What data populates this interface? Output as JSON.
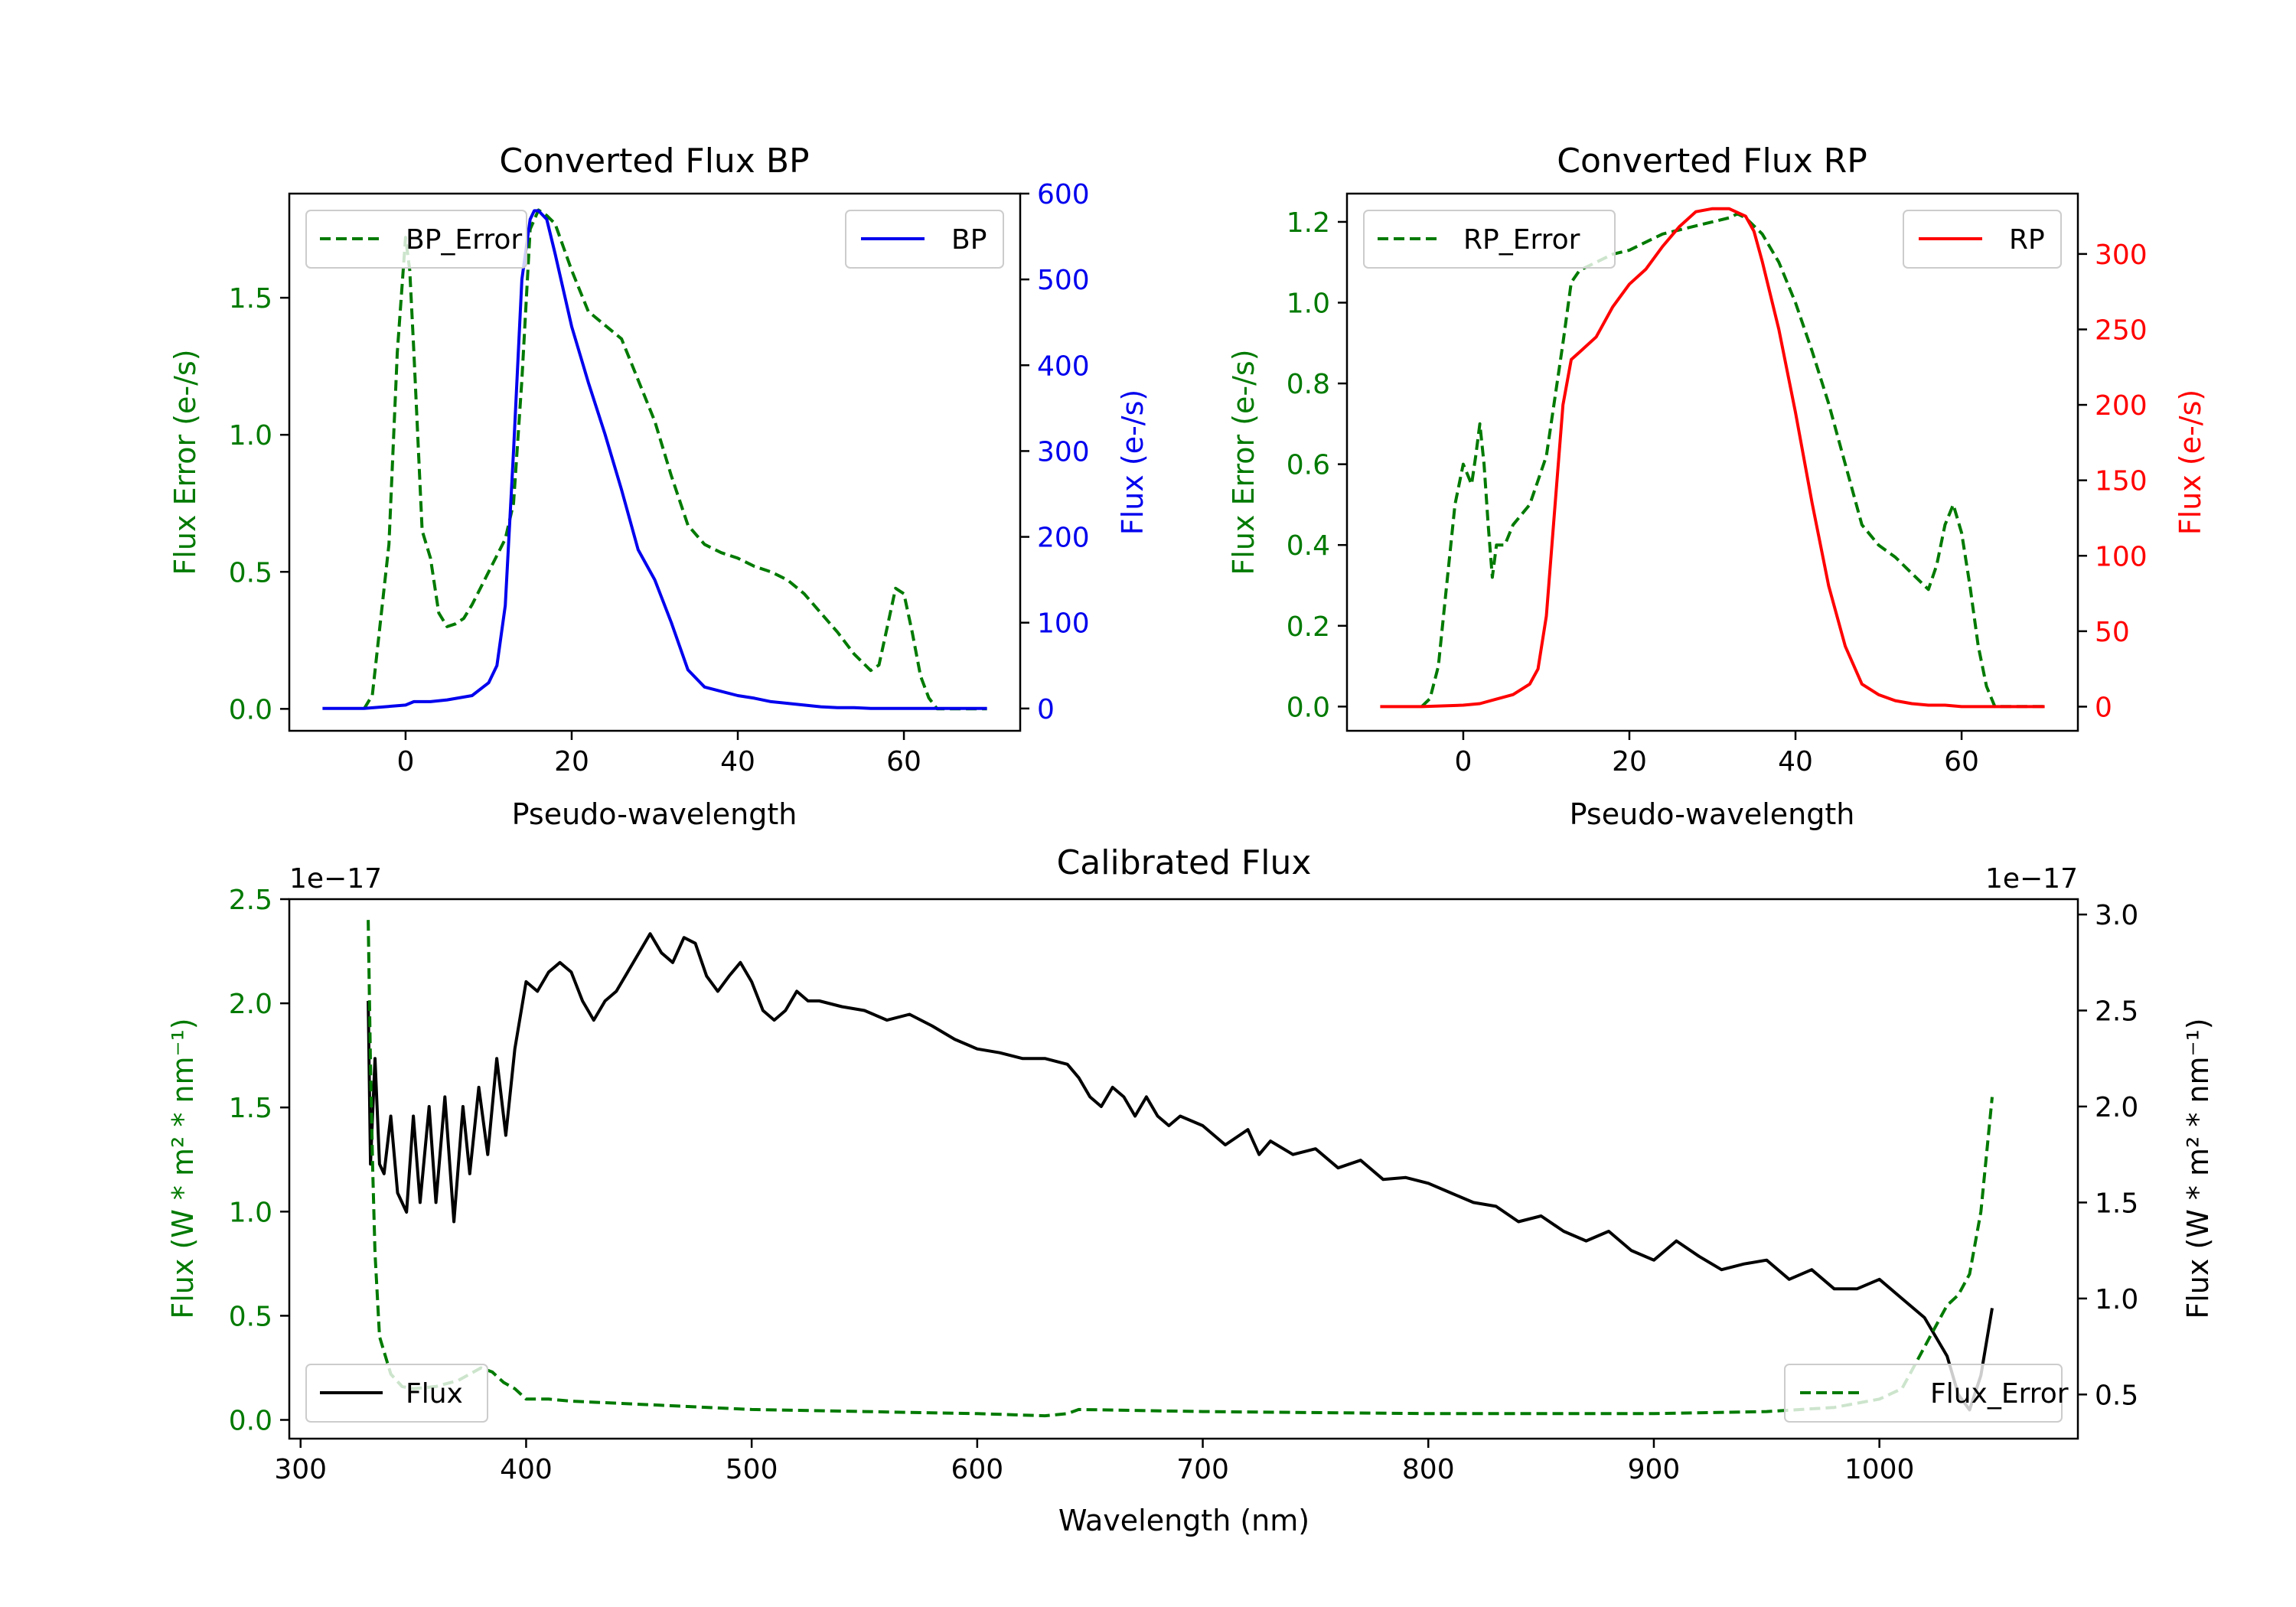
{
  "colors": {
    "error": "#007a00",
    "bp": "#0000ee",
    "rp": "#ff0000",
    "flux": "#000000",
    "axis": "#000000"
  },
  "chart_data": [
    {
      "id": "bp",
      "type": "line",
      "title": "Converted Flux BP",
      "xlabel": "Pseudo-wavelength",
      "ylabel_left": "Flux Error (e-/s)",
      "ylabel_right": "Flux (e-/s)",
      "xlim": [
        -14,
        74
      ],
      "ylim_left": [
        -0.08,
        1.88
      ],
      "ylim_right": [
        -26,
        600
      ],
      "xticks": [
        0,
        20,
        40,
        60
      ],
      "yticks_left": [
        "0.0",
        "0.5",
        "1.0",
        "1.5"
      ],
      "yticks_right": [
        "0",
        "100",
        "200",
        "300",
        "400",
        "500",
        "600"
      ],
      "legend_left": "BP_Error",
      "legend_right": "BP",
      "series": [
        {
          "name": "BP_Error",
          "axis": "left",
          "color": "error",
          "dash": true,
          "x": [
            -5,
            -4,
            -2,
            -1,
            0,
            0.5,
            1,
            2,
            3,
            4,
            5,
            6,
            7,
            8,
            10,
            12,
            13,
            14,
            15,
            16,
            17,
            18,
            20,
            22,
            24,
            26,
            28,
            30,
            32,
            34,
            36,
            38,
            40,
            42,
            44,
            46,
            48,
            50,
            52,
            54,
            56,
            57,
            58,
            59,
            60,
            61,
            62,
            63,
            64,
            66,
            68,
            70
          ],
          "y": [
            0.0,
            0.05,
            0.6,
            1.3,
            1.72,
            1.6,
            1.3,
            0.65,
            0.55,
            0.35,
            0.3,
            0.31,
            0.33,
            0.38,
            0.5,
            0.62,
            0.75,
            1.2,
            1.75,
            1.82,
            1.8,
            1.77,
            1.6,
            1.45,
            1.4,
            1.35,
            1.2,
            1.05,
            0.85,
            0.67,
            0.6,
            0.57,
            0.55,
            0.52,
            0.5,
            0.47,
            0.42,
            0.35,
            0.28,
            0.2,
            0.14,
            0.16,
            0.3,
            0.44,
            0.42,
            0.28,
            0.12,
            0.04,
            0.0,
            0.0,
            0.0,
            0.0
          ]
        },
        {
          "name": "BP",
          "axis": "right",
          "color": "bp",
          "dash": false,
          "x": [
            -10,
            -5,
            0,
            1,
            3,
            5,
            8,
            10,
            11,
            12,
            13,
            14,
            15,
            15.5,
            16,
            17,
            18,
            20,
            22,
            24,
            26,
            28,
            30,
            32,
            34,
            36,
            38,
            40,
            42,
            44,
            46,
            48,
            50,
            52,
            54,
            56,
            58,
            60,
            62,
            64,
            66,
            68,
            70
          ],
          "y": [
            0,
            0,
            4,
            8,
            8,
            10,
            15,
            30,
            50,
            120,
            300,
            500,
            570,
            580,
            580,
            570,
            530,
            445,
            380,
            320,
            255,
            185,
            150,
            100,
            45,
            25,
            20,
            15,
            12,
            8,
            6,
            4,
            2,
            1,
            1,
            0,
            0,
            0,
            0,
            0,
            0,
            0,
            0
          ]
        }
      ]
    },
    {
      "id": "rp",
      "type": "line",
      "title": "Converted Flux RP",
      "xlabel": "Pseudo-wavelength",
      "ylabel_left": "Flux Error (e-/s)",
      "ylabel_right": "Flux (e-/s)",
      "xlim": [
        -14,
        74
      ],
      "ylim_left": [
        -0.06,
        1.27
      ],
      "ylim_right": [
        -16,
        340
      ],
      "xticks": [
        0,
        20,
        40,
        60
      ],
      "yticks_left": [
        "0.0",
        "0.2",
        "0.4",
        "0.6",
        "0.8",
        "1.0",
        "1.2"
      ],
      "yticks_right": [
        "0",
        "50",
        "100",
        "150",
        "200",
        "250",
        "300"
      ],
      "legend_left": "RP_Error",
      "legend_right": "RP",
      "series": [
        {
          "name": "RP_Error",
          "axis": "left",
          "color": "error",
          "dash": true,
          "x": [
            -5,
            -4,
            -3,
            -2,
            -1,
            0,
            1,
            1.5,
            2,
            2.5,
            3,
            3.5,
            4,
            5,
            6,
            8,
            10,
            12,
            13,
            14,
            16,
            18,
            20,
            22,
            24,
            26,
            28,
            30,
            32,
            33,
            34,
            36,
            38,
            40,
            42,
            44,
            46,
            48,
            50,
            52,
            54,
            56,
            57,
            58,
            59,
            60,
            61,
            62,
            63,
            64,
            66,
            68,
            70
          ],
          "y": [
            0.0,
            0.02,
            0.1,
            0.3,
            0.5,
            0.6,
            0.55,
            0.62,
            0.7,
            0.6,
            0.45,
            0.32,
            0.4,
            0.4,
            0.45,
            0.5,
            0.62,
            0.9,
            1.05,
            1.08,
            1.1,
            1.12,
            1.13,
            1.15,
            1.17,
            1.18,
            1.19,
            1.2,
            1.21,
            1.22,
            1.21,
            1.17,
            1.1,
            1.0,
            0.88,
            0.75,
            0.6,
            0.45,
            0.4,
            0.37,
            0.33,
            0.29,
            0.35,
            0.45,
            0.5,
            0.43,
            0.3,
            0.15,
            0.05,
            0.0,
            0.0,
            0.0,
            0.0
          ]
        },
        {
          "name": "RP",
          "axis": "right",
          "color": "rp",
          "dash": false,
          "x": [
            -10,
            -5,
            0,
            2,
            4,
            6,
            8,
            9,
            10,
            11,
            12,
            13,
            14,
            16,
            18,
            20,
            22,
            24,
            26,
            28,
            30,
            32,
            34,
            35,
            36,
            38,
            40,
            42,
            44,
            46,
            48,
            50,
            52,
            54,
            56,
            58,
            60,
            62,
            64,
            66,
            68,
            70
          ],
          "y": [
            0,
            0,
            1,
            2,
            5,
            8,
            15,
            25,
            60,
            130,
            200,
            230,
            235,
            245,
            265,
            280,
            290,
            305,
            318,
            328,
            330,
            330,
            325,
            315,
            295,
            250,
            195,
            135,
            80,
            40,
            15,
            8,
            4,
            2,
            1,
            1,
            0,
            0,
            0,
            0,
            0,
            0
          ]
        }
      ]
    },
    {
      "id": "cal",
      "type": "line",
      "title": "Calibrated Flux",
      "xlabel": "Wavelength (nm)",
      "ylabel_left": "Flux (W * m² * nm⁻¹)",
      "ylabel_right": "Flux (W * m² * nm⁻¹)",
      "offset_left": "1e−17",
      "offset_right": "1e−17",
      "xlim": [
        295,
        1088
      ],
      "ylim_left": [
        -0.09,
        2.5
      ],
      "ylim_right": [
        0.27,
        3.08
      ],
      "xticks": [
        300,
        400,
        500,
        600,
        700,
        800,
        900,
        1000
      ],
      "yticks_left": [
        "0.0",
        "0.5",
        "1.0",
        "1.5",
        "2.0",
        "2.5"
      ],
      "yticks_right": [
        "0.5",
        "1.0",
        "1.5",
        "2.0",
        "2.5",
        "3.0"
      ],
      "legend_left": "Flux",
      "legend_right": "Flux_Error",
      "series": [
        {
          "name": "Flux",
          "axis": "right",
          "color": "flux",
          "dash": false,
          "x": [
            330,
            331,
            333,
            335,
            337,
            340,
            343,
            347,
            350,
            353,
            357,
            360,
            364,
            368,
            372,
            375,
            379,
            383,
            387,
            391,
            395,
            400,
            405,
            410,
            415,
            420,
            425,
            430,
            435,
            440,
            445,
            450,
            455,
            460,
            465,
            470,
            475,
            480,
            485,
            490,
            495,
            500,
            505,
            510,
            515,
            520,
            525,
            530,
            540,
            550,
            560,
            570,
            580,
            590,
            600,
            610,
            620,
            630,
            640,
            645,
            650,
            655,
            660,
            665,
            670,
            675,
            680,
            685,
            690,
            700,
            710,
            720,
            725,
            730,
            740,
            750,
            760,
            770,
            780,
            790,
            800,
            810,
            820,
            830,
            840,
            850,
            860,
            870,
            880,
            890,
            900,
            910,
            920,
            930,
            940,
            950,
            960,
            970,
            980,
            990,
            1000,
            1010,
            1020,
            1030,
            1035,
            1040,
            1045,
            1050
          ],
          "y": [
            2.55,
            1.7,
            2.25,
            1.7,
            1.65,
            1.95,
            1.55,
            1.45,
            1.95,
            1.5,
            2.0,
            1.5,
            2.05,
            1.4,
            2.0,
            1.65,
            2.1,
            1.75,
            2.25,
            1.85,
            2.3,
            2.65,
            2.6,
            2.7,
            2.75,
            2.7,
            2.55,
            2.45,
            2.55,
            2.6,
            2.7,
            2.8,
            2.9,
            2.8,
            2.75,
            2.88,
            2.85,
            2.68,
            2.6,
            2.68,
            2.75,
            2.65,
            2.5,
            2.45,
            2.5,
            2.6,
            2.55,
            2.55,
            2.52,
            2.5,
            2.45,
            2.48,
            2.42,
            2.35,
            2.3,
            2.28,
            2.25,
            2.25,
            2.22,
            2.15,
            2.05,
            2.0,
            2.1,
            2.05,
            1.95,
            2.05,
            1.95,
            1.9,
            1.95,
            1.9,
            1.8,
            1.88,
            1.75,
            1.82,
            1.75,
            1.78,
            1.68,
            1.72,
            1.62,
            1.63,
            1.6,
            1.55,
            1.5,
            1.48,
            1.4,
            1.43,
            1.35,
            1.3,
            1.35,
            1.25,
            1.2,
            1.3,
            1.22,
            1.15,
            1.18,
            1.2,
            1.1,
            1.15,
            1.05,
            1.05,
            1.1,
            1.0,
            0.9,
            0.7,
            0.5,
            0.42,
            0.6,
            0.95
          ]
        },
        {
          "name": "Flux_Error",
          "axis": "left",
          "color": "error",
          "dash": true,
          "x": [
            330,
            331,
            332,
            333,
            335,
            340,
            345,
            350,
            360,
            370,
            375,
            380,
            385,
            390,
            395,
            400,
            410,
            420,
            440,
            460,
            500,
            550,
            600,
            630,
            640,
            645,
            700,
            800,
            900,
            950,
            980,
            1000,
            1010,
            1015,
            1020,
            1025,
            1030,
            1035,
            1040,
            1045,
            1050
          ],
          "y": [
            2.4,
            1.7,
            1.2,
            0.8,
            0.4,
            0.22,
            0.16,
            0.15,
            0.16,
            0.19,
            0.22,
            0.25,
            0.23,
            0.18,
            0.15,
            0.1,
            0.1,
            0.09,
            0.08,
            0.07,
            0.05,
            0.04,
            0.03,
            0.02,
            0.03,
            0.05,
            0.04,
            0.03,
            0.03,
            0.04,
            0.06,
            0.1,
            0.15,
            0.25,
            0.35,
            0.45,
            0.55,
            0.6,
            0.7,
            1.0,
            1.55
          ]
        }
      ]
    }
  ]
}
